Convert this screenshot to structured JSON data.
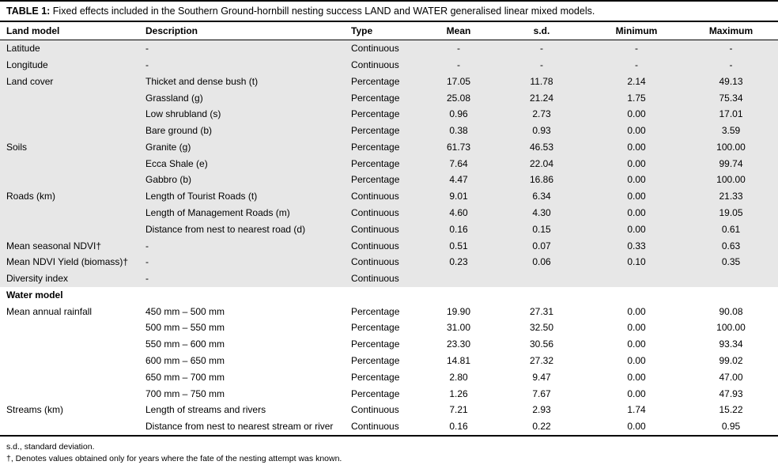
{
  "title": {
    "label": "TABLE 1:",
    "text": " Fixed effects included in the Southern Ground-hornbill nesting success LAND and WATER generalised linear mixed models."
  },
  "table": {
    "columns": [
      "Land model",
      "Description",
      "Type",
      "Mean",
      "s.d.",
      "Minimum",
      "Maximum"
    ],
    "sections": [
      {
        "header": null,
        "shaded": true,
        "rows": [
          [
            "Latitude",
            "-",
            "Continuous",
            "-",
            "-",
            "-",
            "-"
          ],
          [
            "Longitude",
            "-",
            "Continuous",
            "-",
            "-",
            "-",
            "-"
          ],
          [
            "Land cover",
            "Thicket and dense bush (t)",
            "Percentage",
            "17.05",
            "11.78",
            "2.14",
            "49.13"
          ],
          [
            "",
            "Grassland (g)",
            "Percentage",
            "25.08",
            "21.24",
            "1.75",
            "75.34"
          ],
          [
            "",
            "Low shrubland (s)",
            "Percentage",
            "0.96",
            "2.73",
            "0.00",
            "17.01"
          ],
          [
            "",
            "Bare ground (b)",
            "Percentage",
            "0.38",
            "0.93",
            "0.00",
            "3.59"
          ],
          [
            "Soils",
            "Granite (g)",
            "Percentage",
            "61.73",
            "46.53",
            "0.00",
            "100.00"
          ],
          [
            "",
            "Ecca Shale (e)",
            "Percentage",
            "7.64",
            "22.04",
            "0.00",
            "99.74"
          ],
          [
            "",
            "Gabbro (b)",
            "Percentage",
            "4.47",
            "16.86",
            "0.00",
            "100.00"
          ],
          [
            "Roads (km)",
            "Length of Tourist Roads (t)",
            "Continuous",
            "9.01",
            "6.34",
            "0.00",
            "21.33"
          ],
          [
            "",
            "Length of Management Roads (m)",
            "Continuous",
            "4.60",
            "4.30",
            "0.00",
            "19.05"
          ],
          [
            "",
            "Distance from nest to nearest road (d)",
            "Continuous",
            "0.16",
            "0.15",
            "0.00",
            "0.61"
          ],
          [
            "Mean seasonal NDVI†",
            "-",
            "Continuous",
            "0.51",
            "0.07",
            "0.33",
            "0.63"
          ],
          [
            "Mean NDVI Yield (biomass)†",
            "-",
            "Continuous",
            "0.23",
            "0.06",
            "0.10",
            "0.35"
          ],
          [
            "Diversity index",
            "-",
            "Continuous",
            "",
            "",
            "",
            ""
          ]
        ]
      },
      {
        "header": "Water model",
        "shaded": false,
        "rows": [
          [
            "Mean annual rainfall",
            "450 mm – 500 mm",
            "Percentage",
            "19.90",
            "27.31",
            "0.00",
            "90.08"
          ],
          [
            "",
            "500 mm – 550 mm",
            "Percentage",
            "31.00",
            "32.50",
            "0.00",
            "100.00"
          ],
          [
            "",
            "550 mm – 600 mm",
            "Percentage",
            "23.30",
            "30.56",
            "0.00",
            "93.34"
          ],
          [
            "",
            "600 mm – 650 mm",
            "Percentage",
            "14.81",
            "27.32",
            "0.00",
            "99.02"
          ],
          [
            "",
            "650 mm – 700 mm",
            "Percentage",
            "2.80",
            "9.47",
            "0.00",
            "47.00"
          ],
          [
            "",
            "700 mm – 750 mm",
            "Percentage",
            "1.26",
            "7.67",
            "0.00",
            "47.93"
          ],
          [
            "Streams (km)",
            "Length of streams and rivers",
            "Continuous",
            "7.21",
            "2.93",
            "1.74",
            "15.22"
          ],
          [
            "",
            "Distance from nest to nearest stream or river",
            "Continuous",
            "0.16",
            "0.22",
            "0.00",
            "0.95"
          ]
        ]
      }
    ]
  },
  "footnotes": [
    "s.d., standard deviation.",
    "†, Denotes values obtained only for years where the fate of the nesting attempt was known."
  ]
}
